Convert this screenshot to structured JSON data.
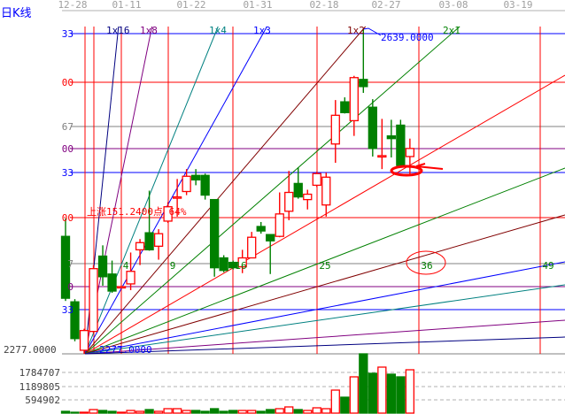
{
  "header": {
    "title": "日K线"
  },
  "dates": [
    "12-28",
    "01-11",
    "01-22",
    "01-31",
    "02-18",
    "02-27",
    "03-08",
    "03-19"
  ],
  "price_labels": [
    {
      "text": "33",
      "color": "#0000ff"
    },
    {
      "text": "00",
      "color": "#ff0000"
    },
    {
      "text": "67",
      "color": "#808080"
    },
    {
      "text": "00",
      "color": "#800080"
    },
    {
      "text": "33",
      "color": "#0000ff"
    },
    {
      "text": "00",
      "color": "#ff0000"
    },
    {
      "text": "7",
      "color": "#808080"
    },
    {
      "text": "0",
      "color": "#800080"
    },
    {
      "text": "33",
      "color": "#0000ff"
    }
  ],
  "low_label": "2277.0000",
  "low_label_overlay": "2277.0000",
  "high_label": "2639.0000",
  "fan_labels": [
    {
      "text": "1x16",
      "color": "#000080"
    },
    {
      "text": "1x8",
      "color": "#800080"
    },
    {
      "text": "1x4",
      "color": "#008080"
    },
    {
      "text": "1x3",
      "color": "#0000ff"
    },
    {
      "text": "1x2",
      "color": "#800000"
    },
    {
      "text": "2x1",
      "color": "#008000"
    }
  ],
  "gain_annotation": "上涨151.2400点 64%",
  "square_numbers": [
    "4",
    "9",
    "16",
    "25",
    "36",
    "49"
  ],
  "volume_axis": [
    "1784707",
    "1189805",
    "594902"
  ],
  "colors": {
    "up": "#ff0000",
    "down": "#008000",
    "grid": "#808080",
    "label": "#404040"
  },
  "chart_data": {
    "type": "candlestick",
    "price_low": 2277,
    "price_high": 2639,
    "candles": [
      [
        2408,
        2428,
        2336,
        2339
      ],
      [
        2335,
        2338,
        2291,
        2294
      ],
      [
        2281,
        2305,
        2277,
        2303
      ],
      [
        2302,
        2376,
        2300,
        2372
      ],
      [
        2386,
        2398,
        2353,
        2363
      ],
      [
        2366,
        2381,
        2345,
        2347
      ],
      [
        2351,
        2353,
        2350,
        2352
      ],
      [
        2355,
        2390,
        2348,
        2369
      ],
      [
        2393,
        2405,
        2376,
        2401
      ],
      [
        2412,
        2459,
        2392,
        2393
      ],
      [
        2397,
        2416,
        2382,
        2411
      ],
      [
        2425,
        2446,
        2423,
        2441
      ],
      [
        2451,
        2472,
        2430,
        2452
      ],
      [
        2458,
        2483,
        2454,
        2475
      ],
      [
        2476,
        2483,
        2465,
        2471
      ],
      [
        2476,
        2478,
        2449,
        2454
      ],
      [
        2449,
        2449,
        2363,
        2373
      ],
      [
        2384,
        2387,
        2368,
        2370
      ],
      [
        2379,
        2381,
        2371,
        2373
      ],
      [
        2374,
        2393,
        2367,
        2384
      ],
      [
        2384,
        2413,
        2384,
        2407
      ],
      [
        2419,
        2424,
        2411,
        2414
      ],
      [
        2410,
        2410,
        2366,
        2403
      ],
      [
        2408,
        2457,
        2407,
        2433
      ],
      [
        2436,
        2481,
        2426,
        2457
      ],
      [
        2467,
        2485,
        2450,
        2452
      ],
      [
        2449,
        2460,
        2438,
        2455
      ],
      [
        2465,
        2480,
        2463,
        2478
      ],
      [
        2443,
        2479,
        2430,
        2474
      ],
      [
        2511,
        2560,
        2490,
        2543
      ],
      [
        2558,
        2563,
        2545,
        2546
      ],
      [
        2537,
        2587,
        2520,
        2585
      ],
      [
        2583,
        2639,
        2568,
        2575
      ],
      [
        2552,
        2561,
        2497,
        2506
      ],
      [
        2497,
        2539,
        2483,
        2498
      ],
      [
        2520,
        2538,
        2496,
        2517
      ],
      [
        2532,
        2538,
        2485,
        2487
      ],
      [
        2497,
        2517,
        2477,
        2506
      ]
    ],
    "candle_fields": [
      "open",
      "high",
      "low",
      "close"
    ],
    "volumes": [
      76270,
      38135,
      38135,
      152540,
      114405,
      76270,
      38135,
      114405,
      76270,
      152540,
      76270,
      190675,
      190675,
      114405,
      114405,
      76270,
      190675,
      76270,
      114405,
      114405,
      114405,
      76270,
      152540,
      190675,
      266945,
      152540,
      114405,
      228810,
      190675,
      991510,
      686430,
      1563535,
      2555045,
      1716075,
      1983020,
      1677940,
      1563535,
      1868615
    ],
    "volume_ticks": [
      594902,
      1189805,
      1784707
    ]
  }
}
